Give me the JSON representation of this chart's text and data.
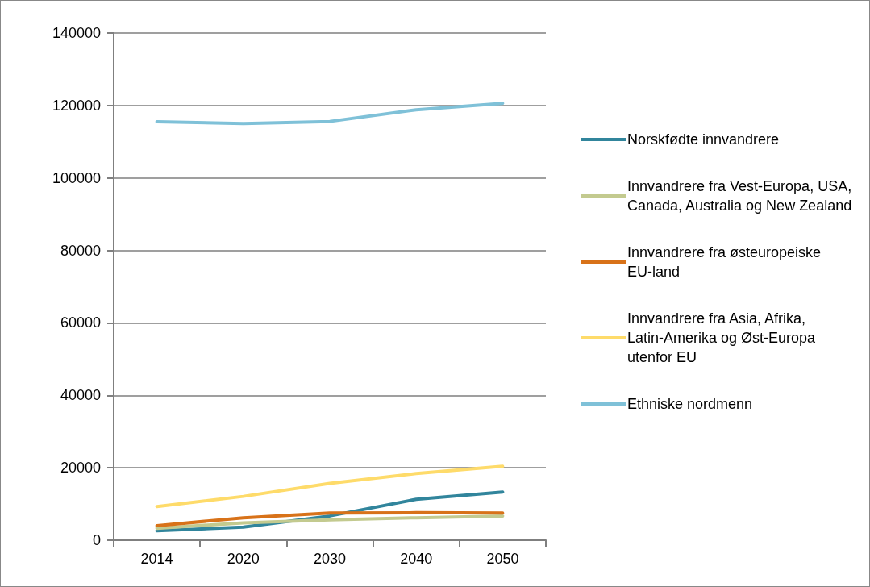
{
  "chart_data": {
    "type": "line",
    "categories": [
      "2014",
      "2020",
      "2030",
      "2040",
      "2050"
    ],
    "series": [
      {
        "name": "Norskfødte innvandrere",
        "color": "#31859c",
        "values": [
          2600,
          3600,
          6700,
          11300,
          13300
        ]
      },
      {
        "name": "Innvandrere fra Vest-Europa, USA, Canada, Australia og New Zealand",
        "color": "#c3ca8f",
        "values": [
          3300,
          4800,
          5600,
          6200,
          6700
        ]
      },
      {
        "name": "Innvandrere fra østeuropeiske EU-land",
        "color": "#d87219",
        "values": [
          4000,
          6200,
          7500,
          7600,
          7500
        ]
      },
      {
        "name": "Innvandrere fra Asia, Afrika, Latin-Amerika og Øst-Europa utenfor EU",
        "color": "#fedb6a",
        "values": [
          9300,
          12100,
          15700,
          18400,
          20400
        ]
      },
      {
        "name": "Ethniske nordmenn",
        "color": "#7fc1d8",
        "values": [
          115500,
          115000,
          115600,
          118800,
          120600
        ]
      }
    ],
    "ylim": [
      0,
      140000
    ],
    "yticks": [
      0,
      20000,
      40000,
      60000,
      80000,
      100000,
      120000,
      140000
    ],
    "grid": "y",
    "legend": "right",
    "marker": "none",
    "line_style": "solid"
  }
}
